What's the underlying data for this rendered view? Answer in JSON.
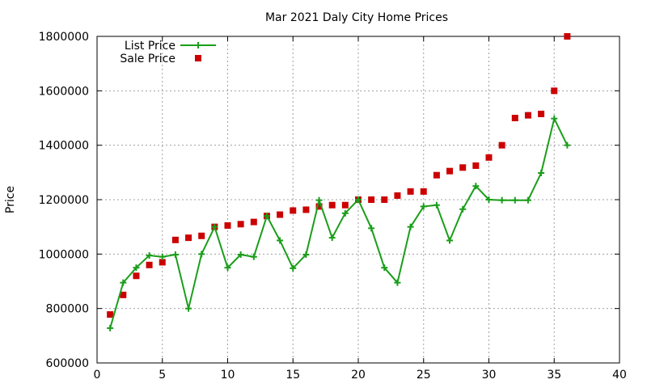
{
  "chart_data": {
    "type": "line",
    "title": "Mar 2021 Daly City Home Prices",
    "xlabel": "",
    "ylabel": "Price",
    "xlim": [
      0,
      40
    ],
    "ylim": [
      600000,
      1800000
    ],
    "xticks": [
      0,
      5,
      10,
      15,
      20,
      25,
      30,
      35,
      40
    ],
    "yticks": [
      600000,
      800000,
      1000000,
      1200000,
      1400000,
      1600000,
      1800000
    ],
    "xtick_labels": [
      "0",
      "5",
      "10",
      "15",
      "20",
      "25",
      "30",
      "35",
      "40"
    ],
    "ytick_labels": [
      "600000",
      "800000",
      "1000000",
      "1200000",
      "1400000",
      "1600000",
      "1800000"
    ],
    "grid": true,
    "legend_position": "top-left",
    "series": [
      {
        "name": "List Price",
        "style": "line-plus",
        "color": "#1a9e1a",
        "x": [
          1,
          2,
          3,
          4,
          5,
          6,
          7,
          8,
          9,
          10,
          11,
          12,
          13,
          14,
          15,
          16,
          17,
          18,
          19,
          20,
          21,
          22,
          23,
          24,
          25,
          26,
          27,
          28,
          29,
          30,
          31,
          32,
          33,
          34,
          35,
          36
        ],
        "values": [
          728000,
          895000,
          950000,
          995000,
          990000,
          998000,
          800000,
          1000000,
          1100000,
          950000,
          998000,
          990000,
          1140000,
          1050000,
          948000,
          998000,
          1198000,
          1060000,
          1150000,
          1200000,
          1095000,
          950000,
          895000,
          1100000,
          1175000,
          1180000,
          1050000,
          1165000,
          1250000,
          1200000,
          1198000,
          1198000,
          1198000,
          1298000,
          1498000,
          1400000
        ]
      },
      {
        "name": "Sale Price",
        "style": "square",
        "color": "#cc0000",
        "x": [
          1,
          2,
          3,
          4,
          5,
          6,
          7,
          8,
          9,
          10,
          11,
          12,
          13,
          14,
          15,
          16,
          17,
          18,
          19,
          20,
          21,
          22,
          23,
          24,
          25,
          26,
          27,
          28,
          29,
          30,
          31,
          32,
          33,
          34,
          35,
          36
        ],
        "values": [
          778000,
          850000,
          920000,
          960000,
          970000,
          1052000,
          1060000,
          1067000,
          1100000,
          1105000,
          1110000,
          1118000,
          1140000,
          1145000,
          1160000,
          1163000,
          1175000,
          1180000,
          1180000,
          1200000,
          1200000,
          1200000,
          1215000,
          1230000,
          1230000,
          1290000,
          1305000,
          1318000,
          1325000,
          1355000,
          1400000,
          1500000,
          1510000,
          1515000,
          1600000,
          1800000
        ]
      }
    ]
  }
}
